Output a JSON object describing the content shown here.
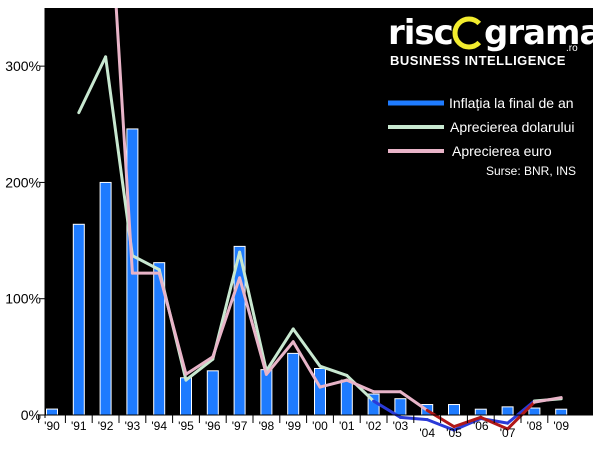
{
  "brand": {
    "logo_left": "risc",
    "logo_right": "grama",
    "logo_suffix": ".ro",
    "tagline": "BUSINESS INTELLIGENCE",
    "accent_color": "#f2ec2e"
  },
  "chart_data": {
    "type": "bar",
    "categories": [
      "'90",
      "'91",
      "'92",
      "'93",
      "'94",
      "'95",
      "'96",
      "'97",
      "'98",
      "'99",
      "'00",
      "'01",
      "'02",
      "'03",
      "'04",
      "'05",
      "'06",
      "'07",
      "'08",
      "'09"
    ],
    "ylim": [
      0,
      350
    ],
    "yticks": [
      0,
      100,
      200,
      300
    ],
    "ytick_labels": [
      "0%",
      "100%",
      "200%",
      "300%"
    ],
    "grid": false,
    "legend_position": "top-right",
    "source": "Surse: BNR, INS",
    "series": [
      {
        "name": "Inflația la final de an",
        "kind": "bar",
        "color": "#1e7bff",
        "values": [
          5.1,
          164,
          200,
          246,
          131,
          32,
          38,
          145,
          39,
          53,
          40,
          30,
          18,
          14,
          9,
          9,
          5,
          7,
          6,
          5
        ]
      },
      {
        "name": "Aprecierea dolarului",
        "kind": "line",
        "color": "#c8e8d0",
        "line_color_negative": "#2a3ad8",
        "values": [
          null,
          260,
          308,
          137,
          125,
          30,
          48,
          140,
          38,
          74,
          42,
          34,
          12,
          -2,
          -4,
          -13,
          -3,
          -7,
          12,
          14
        ]
      },
      {
        "name": "Aprecierea euro",
        "kind": "line",
        "color": "#e8b4c8",
        "line_color_negative": "#b01818",
        "values": [
          null,
          null,
          500,
          122,
          122,
          35,
          50,
          118,
          35,
          63,
          24,
          30,
          20,
          20,
          4,
          -10,
          -2,
          -12,
          11,
          15
        ]
      }
    ]
  }
}
